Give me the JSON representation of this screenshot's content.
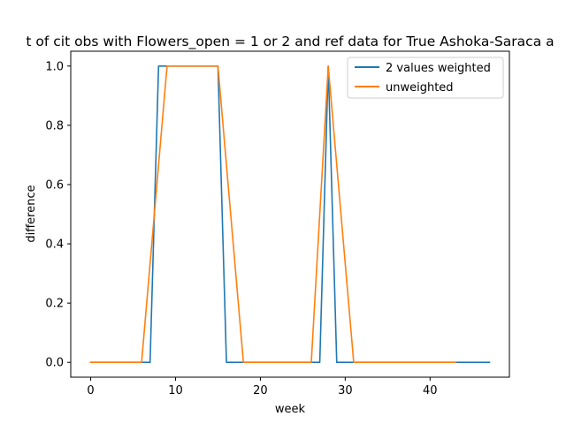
{
  "chart_data": {
    "type": "line",
    "title": "t of cit obs with Flowers_open = 1 or 2 and ref data for True Ashoka-Saraca a",
    "xlabel": "week",
    "ylabel": "difference",
    "xlim": [
      -2.35,
      49.35
    ],
    "ylim": [
      -0.05,
      1.05
    ],
    "xticks": [
      0,
      10,
      20,
      30,
      40
    ],
    "yticks": [
      0.0,
      0.2,
      0.4,
      0.6,
      0.8,
      1.0
    ],
    "ytick_labels": [
      "0.0",
      "0.2",
      "0.4",
      "0.6",
      "0.8",
      "1.0"
    ],
    "legend_position": "top-right",
    "series": [
      {
        "name": "2 values weighted",
        "color": "#1f77b4",
        "points": [
          [
            0,
            0
          ],
          [
            7,
            0
          ],
          [
            8,
            1
          ],
          [
            15,
            1
          ],
          [
            16,
            0
          ],
          [
            27,
            0
          ],
          [
            28,
            1
          ],
          [
            29,
            0
          ],
          [
            47,
            0
          ]
        ]
      },
      {
        "name": "unweighted",
        "color": "#ff7f0e",
        "points": [
          [
            0,
            0
          ],
          [
            6,
            0
          ],
          [
            9,
            1
          ],
          [
            15,
            1
          ],
          [
            18,
            0
          ],
          [
            26,
            0
          ],
          [
            28,
            1
          ],
          [
            31,
            0
          ],
          [
            43,
            0
          ]
        ]
      }
    ]
  }
}
